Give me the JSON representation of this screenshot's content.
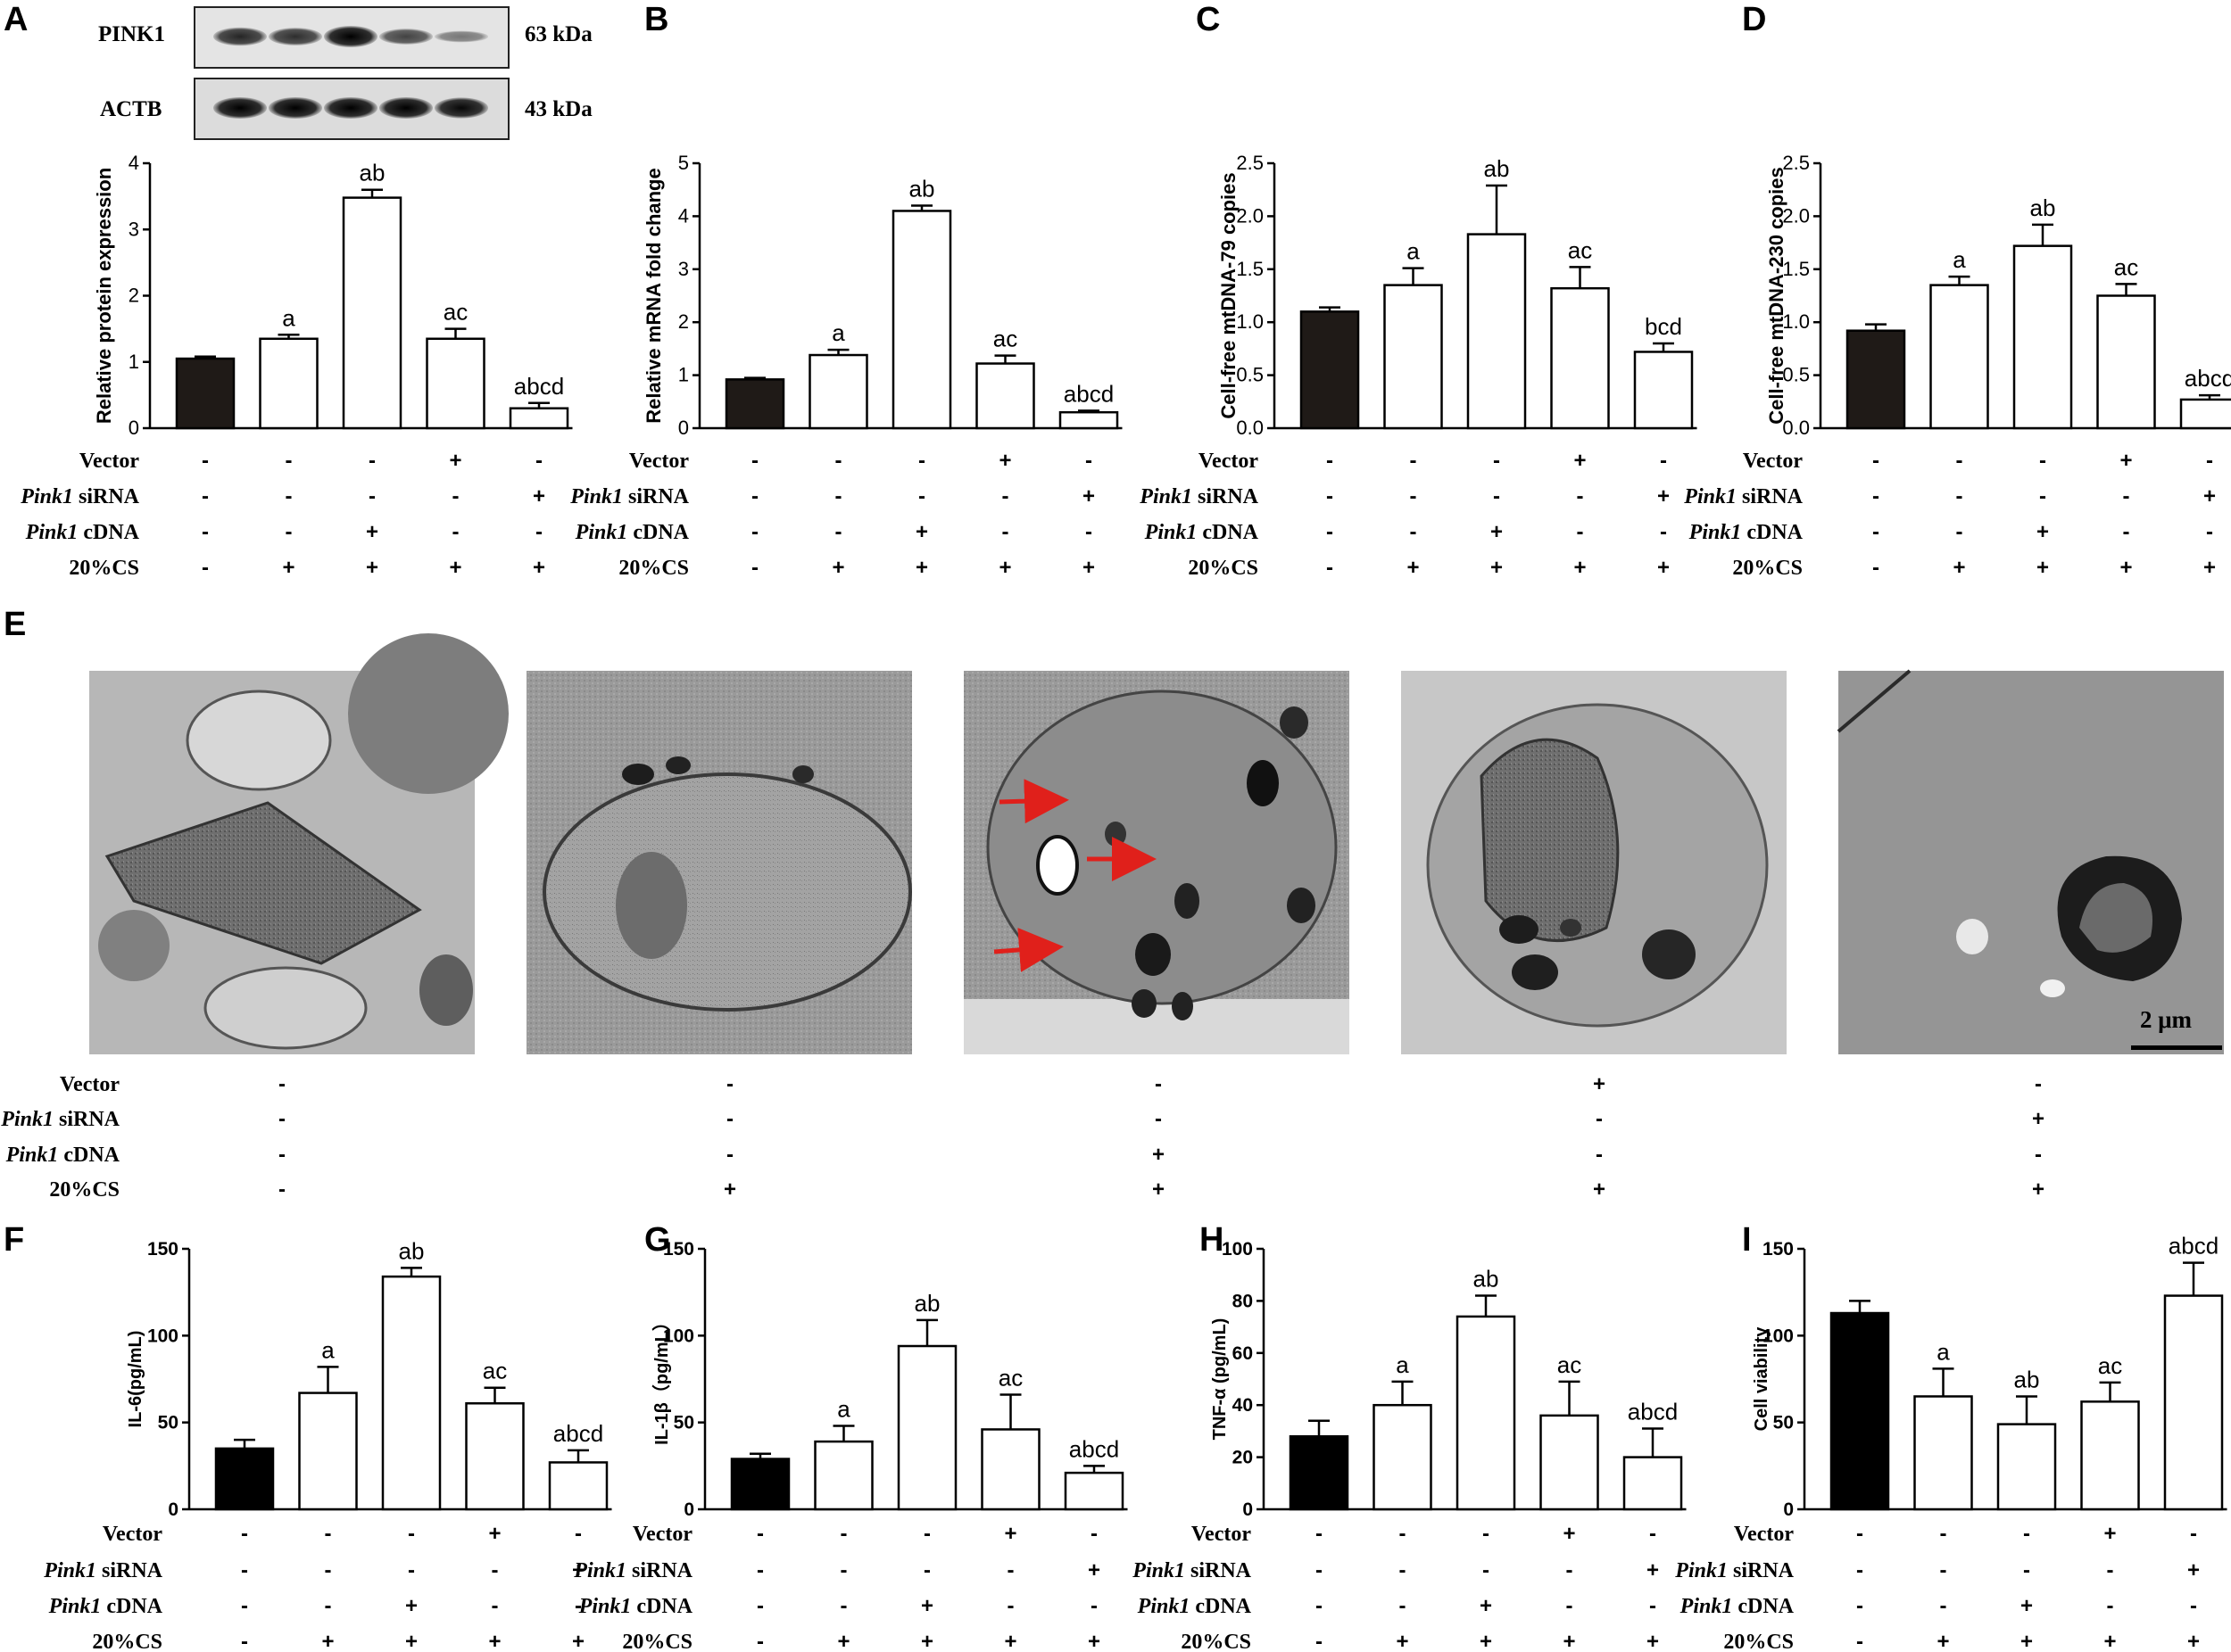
{
  "panel_letters": [
    "A",
    "B",
    "C",
    "D",
    "E",
    "F",
    "G",
    "H",
    "I"
  ],
  "western_blot": {
    "rows": [
      {
        "name": "PINK1",
        "size": "63 kDa",
        "band_intensity": [
          0.75,
          0.7,
          1.0,
          0.55,
          0.2
        ]
      },
      {
        "name": "ACTB",
        "size": "43 kDa",
        "band_intensity": [
          1.0,
          1.0,
          1.0,
          1.0,
          0.95
        ]
      }
    ]
  },
  "condition_labels": {
    "vector": "Vector",
    "pink1_italic": "Pink1",
    "sirna_suffix": " siRNA",
    "cdna_suffix": " cDNA",
    "cs": "20%CS"
  },
  "condition_signs": {
    "vector": [
      "-",
      "-",
      "-",
      "+",
      "-"
    ],
    "sirna": [
      "-",
      "-",
      "-",
      "-",
      "+"
    ],
    "cdna": [
      "-",
      "-",
      "+",
      "-",
      "-"
    ],
    "cs": [
      "-",
      "+",
      "+",
      "+",
      "+"
    ]
  },
  "em_panel": {
    "scale_bar_label": "2 μm",
    "arrow_color": "#e0201b",
    "image_count": 5
  },
  "colors": {
    "control_bar": "#1f1a17",
    "black_bar": "#000000",
    "treated_bar": "#ffffff",
    "axis": "#000000"
  },
  "chart_data": [
    {
      "panel": "A",
      "type": "bar",
      "ylabel": "Relative protein expression",
      "ylim": [
        0,
        4
      ],
      "yticks": [
        0,
        1,
        2,
        3,
        4
      ],
      "values": [
        1.05,
        1.35,
        3.48,
        1.35,
        0.3
      ],
      "errors": [
        0.03,
        0.06,
        0.12,
        0.15,
        0.08
      ],
      "labels": [
        "",
        "a",
        "ab",
        "ac",
        "abcd"
      ]
    },
    {
      "panel": "B",
      "type": "bar",
      "ylabel": "Relative mRNA fold change",
      "ylim": [
        0,
        5
      ],
      "yticks": [
        0,
        1,
        2,
        3,
        4,
        5
      ],
      "values": [
        0.92,
        1.38,
        4.1,
        1.22,
        0.3
      ],
      "errors": [
        0.03,
        0.1,
        0.1,
        0.15,
        0.03
      ],
      "labels": [
        "",
        "a",
        "ab",
        "ac",
        "abcd"
      ]
    },
    {
      "panel": "C",
      "type": "bar",
      "ylabel": "Cell-free mtDNA-79 copies",
      "ylim": [
        0,
        2.5
      ],
      "yticks": [
        0,
        0.5,
        1.0,
        1.5,
        2.0,
        2.5
      ],
      "values": [
        1.1,
        1.35,
        1.83,
        1.32,
        0.72
      ],
      "errors": [
        0.04,
        0.16,
        0.46,
        0.2,
        0.08
      ],
      "labels": [
        "",
        "a",
        "ab",
        "ac",
        "bcd"
      ]
    },
    {
      "panel": "D",
      "type": "bar",
      "ylabel": "Cell-free mtDNA-230 copies",
      "ylim": [
        0,
        2.5
      ],
      "yticks": [
        0,
        0.5,
        1.0,
        1.5,
        2.0,
        2.5
      ],
      "values": [
        0.92,
        1.35,
        1.72,
        1.25,
        0.27
      ],
      "errors": [
        0.06,
        0.08,
        0.2,
        0.11,
        0.04
      ],
      "labels": [
        "",
        "a",
        "ab",
        "ac",
        "abcd"
      ]
    },
    {
      "panel": "F",
      "type": "bar",
      "ylabel": "IL-6(pg/mL)",
      "ylim": [
        0,
        150
      ],
      "yticks": [
        0,
        50,
        100,
        150
      ],
      "values": [
        35,
        67,
        134,
        61,
        27
      ],
      "errors": [
        5,
        15,
        5,
        9,
        7
      ],
      "labels": [
        "",
        "a",
        "ab",
        "ac",
        "abcd"
      ]
    },
    {
      "panel": "G",
      "type": "bar",
      "ylabel": "IL-1β（pg/mL）",
      "ylim": [
        0,
        150
      ],
      "yticks": [
        0,
        50,
        100,
        150
      ],
      "values": [
        29,
        39,
        94,
        46,
        21
      ],
      "errors": [
        3,
        9,
        15,
        20,
        4
      ],
      "labels": [
        "",
        "a",
        "ab",
        "ac",
        "abcd"
      ]
    },
    {
      "panel": "H",
      "type": "bar",
      "ylabel": "TNF-α (pg/mL)",
      "ylim": [
        0,
        100
      ],
      "yticks": [
        0,
        20,
        40,
        60,
        80,
        100
      ],
      "values": [
        28,
        40,
        74,
        36,
        20
      ],
      "errors": [
        6,
        9,
        8,
        13,
        11
      ],
      "labels": [
        "",
        "a",
        "ab",
        "ac",
        "abcd"
      ]
    },
    {
      "panel": "I",
      "type": "bar",
      "ylabel": "Cell viability",
      "ylim": [
        0,
        150
      ],
      "yticks": [
        0,
        50,
        100,
        150
      ],
      "values": [
        113,
        65,
        49,
        62,
        123
      ],
      "errors": [
        7,
        16,
        16,
        11,
        19
      ],
      "labels": [
        "",
        "a",
        "ab",
        "ac",
        "abcd"
      ]
    }
  ]
}
